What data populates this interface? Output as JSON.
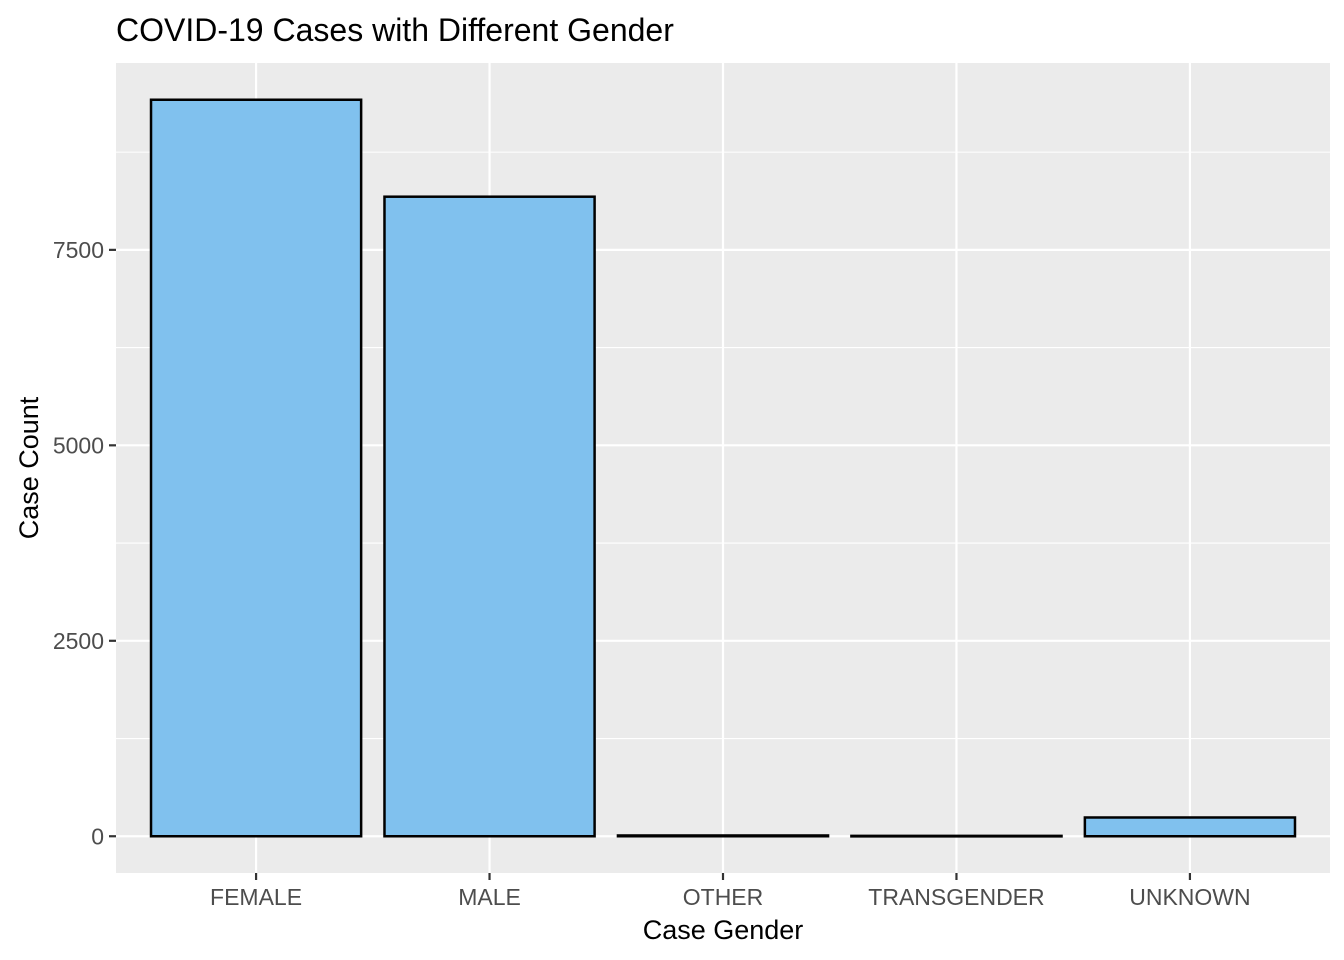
{
  "chart_data": {
    "type": "bar",
    "title": "COVID-19 Cases with Different Gender",
    "xlabel": "Case Gender",
    "ylabel": "Case Count",
    "categories": [
      "FEMALE",
      "MALE",
      "OTHER",
      "TRANSGENDER",
      "UNKNOWN"
    ],
    "values": [
      9420,
      8180,
      10,
      5,
      240
    ],
    "ylim": [
      -470,
      9890
    ],
    "yticks": [
      0,
      2500,
      5000,
      7500
    ],
    "ytick_labels": [
      "0",
      "2500",
      "5000",
      "7500"
    ],
    "grid": true,
    "legend": "none",
    "colors": {
      "bar_fill": "#80C1EE",
      "bar_stroke": "#000000",
      "panel_background": "#EBEBEB",
      "grid": "#FFFFFF",
      "tick_label": "#4D4D4D"
    }
  }
}
